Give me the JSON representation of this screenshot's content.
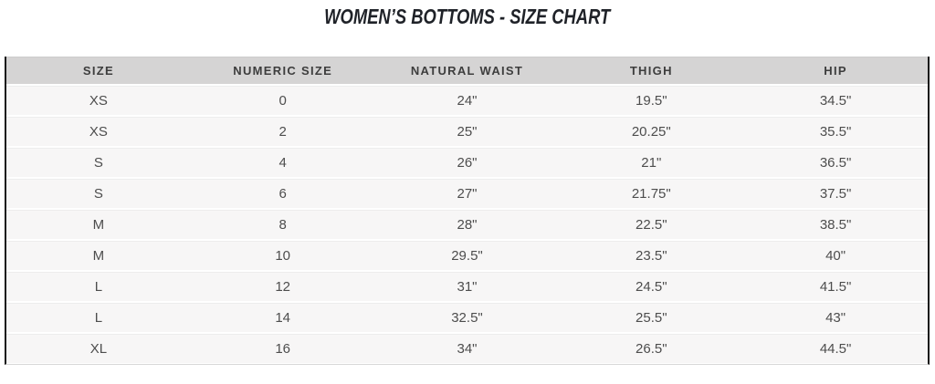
{
  "title": "WOMEN’S BOTTOMS - SIZE CHART",
  "table": {
    "columns": [
      {
        "key": "size",
        "label": "SIZE"
      },
      {
        "key": "numeric-size",
        "label": "NUMERIC SIZE"
      },
      {
        "key": "natural-waist",
        "label": "NATURAL WAIST"
      },
      {
        "key": "thigh",
        "label": "THIGH"
      },
      {
        "key": "hip",
        "label": "HIP"
      }
    ],
    "rows": [
      [
        "XS",
        "0",
        "24\"",
        "19.5\"",
        "34.5\""
      ],
      [
        "XS",
        "2",
        "25\"",
        "20.25\"",
        "35.5\""
      ],
      [
        "S",
        "4",
        "26\"",
        "21\"",
        "36.5\""
      ],
      [
        "S",
        "6",
        "27\"",
        "21.75\"",
        "37.5\""
      ],
      [
        "M",
        "8",
        "28\"",
        "22.5\"",
        "38.5\""
      ],
      [
        "M",
        "10",
        "29.5\"",
        "23.5\"",
        "40\""
      ],
      [
        "L",
        "12",
        "31\"",
        "24.5\"",
        "41.5\""
      ],
      [
        "L",
        "14",
        "32.5\"",
        "25.5\"",
        "43\""
      ],
      [
        "XL",
        "16",
        "34\"",
        "26.5\"",
        "44.5\""
      ]
    ]
  },
  "colors": {
    "title_text": "#1f2228",
    "header_bg": "#d5d4d4",
    "header_text": "#3d3d3d",
    "row_bg": "#f7f6f6",
    "row_text": "#4d4d4d",
    "table_side_border": "#161616",
    "row_separator": "#ededed"
  }
}
